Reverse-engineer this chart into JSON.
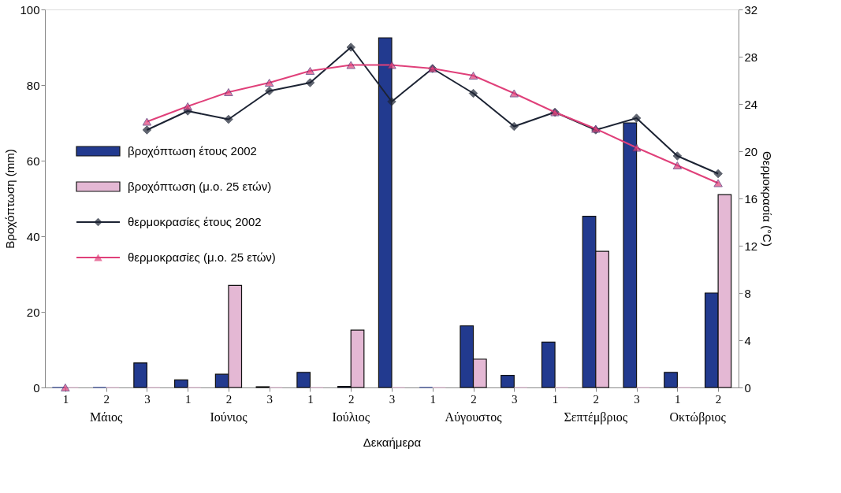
{
  "chart_data": {
    "type": "bar",
    "xlabel": "Δεκαήμερα",
    "ylabel": "Βροχόπτωση (mm)",
    "y2label": "Θερμοκρασία (°C)",
    "categories": [
      "1",
      "2",
      "3",
      "1",
      "2",
      "3",
      "1",
      "2",
      "3",
      "1",
      "2",
      "3",
      "1",
      "2",
      "3",
      "1",
      "2"
    ],
    "annotations": [
      "Μάιος",
      "Ιούνιος",
      "Ιούλιος",
      "Αύγουστος",
      "Σεπτέμβριος",
      "Οκτώβριος"
    ],
    "series": [
      {
        "name": "βροχόπτωση έτους 2002",
        "color": "#223a8f",
        "values": [
          0,
          0,
          6.5,
          2,
          3.5,
          0.2,
          4,
          0.3,
          92.5,
          0,
          16.3,
          3.2,
          12,
          45.3,
          70,
          4,
          25
        ]
      },
      {
        "name": "βροχόπτωση (μ.ο. 25 ετών)",
        "color": "#e4b8d4",
        "values": [
          0,
          0,
          0,
          0,
          27,
          0,
          0,
          15.2,
          0,
          0,
          7.5,
          0,
          0,
          36,
          0,
          0,
          51
        ]
      },
      {
        "name": "θερμοκρασίες έτους 2002",
        "type": "line",
        "axis": "y2",
        "color": "#1c2333",
        "marker": "diamond",
        "values": [
          null,
          null,
          21.8,
          23.4,
          22.7,
          25.1,
          25.8,
          28.8,
          24.2,
          27.0,
          24.9,
          22.1,
          23.3,
          21.8,
          22.8,
          19.6,
          18.1
        ]
      },
      {
        "name": "θερμοκρασίες  (μ.ο. 25 ετών)",
        "type": "line",
        "axis": "y2",
        "color": "#e0407a",
        "marker": "triangle",
        "values": [
          0,
          null,
          22.5,
          23.8,
          25.0,
          25.8,
          26.8,
          27.3,
          27.3,
          27.0,
          26.4,
          24.9,
          23.3,
          21.9,
          20.3,
          18.8,
          17.3
        ]
      }
    ],
    "ylim": [
      0,
      100
    ],
    "yticks": [
      0,
      20,
      40,
      60,
      80,
      100
    ],
    "y2lim": [
      0,
      32
    ],
    "y2ticks": [
      0,
      4,
      8,
      12,
      16,
      20,
      24,
      28,
      32
    ],
    "grid": false,
    "legend": "left"
  }
}
